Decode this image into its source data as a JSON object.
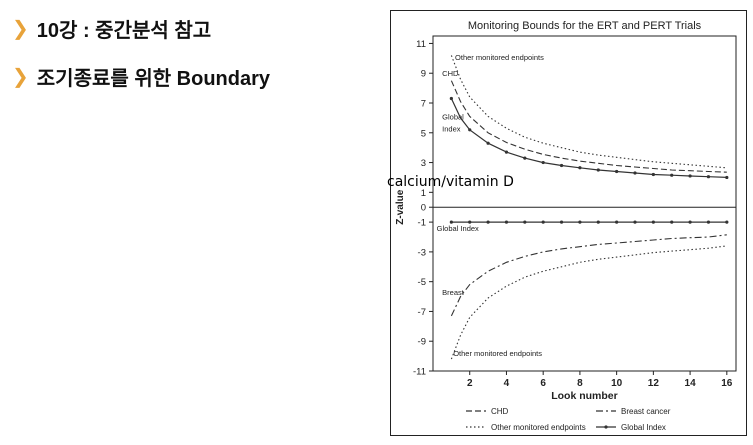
{
  "bullets": [
    {
      "icon": "chevron-right-icon",
      "text": "10강 : 중간분석 참고"
    },
    {
      "icon": "chevron-right-icon",
      "text": "조기종료를 위한 Boundary"
    }
  ],
  "overlay_label": "calcium/vitamin D",
  "colors": {
    "chevron": "#e8a33a",
    "lines": "#333333"
  },
  "chart_data": {
    "type": "line",
    "title": "Monitoring Bounds for the ERT and PERT Trials",
    "xlabel": "Look number",
    "ylabel": "Z-value",
    "xlim": [
      0,
      16.5
    ],
    "ylim": [
      -11,
      11.5
    ],
    "xticks": [
      2,
      4,
      6,
      8,
      10,
      12,
      14,
      16
    ],
    "yticks": [
      11,
      9,
      7,
      5,
      3,
      1,
      0,
      -1,
      -3,
      -5,
      -7,
      -9,
      -11
    ],
    "x": [
      1,
      1.5,
      2,
      3,
      4,
      5,
      6,
      7,
      8,
      9,
      10,
      11,
      12,
      13,
      14,
      15,
      16
    ],
    "series": [
      {
        "name": "Other monitored endpoints",
        "style": "dotted",
        "values": [
          10.2,
          8.6,
          7.4,
          6.1,
          5.3,
          4.7,
          4.3,
          4.0,
          3.7,
          3.5,
          3.35,
          3.2,
          3.05,
          2.95,
          2.85,
          2.75,
          2.65
        ]
      },
      {
        "name": "CHD",
        "style": "dash",
        "values": [
          8.5,
          7.1,
          6.1,
          5.0,
          4.35,
          3.9,
          3.55,
          3.3,
          3.1,
          2.95,
          2.8,
          2.7,
          2.6,
          2.5,
          2.45,
          2.4,
          2.35
        ]
      },
      {
        "name": "Global Index",
        "style": "solid-marker",
        "values": [
          7.3,
          6.0,
          5.2,
          4.3,
          3.7,
          3.3,
          3.0,
          2.8,
          2.65,
          2.5,
          2.4,
          2.3,
          2.2,
          2.15,
          2.1,
          2.05,
          2.0
        ]
      },
      {
        "name": "Global Index",
        "style": "solid-marker",
        "values": [
          -1,
          -1,
          -1,
          -1,
          -1,
          -1,
          -1,
          -1,
          -1,
          -1,
          -1,
          -1,
          -1,
          -1,
          -1,
          -1,
          -1
        ]
      },
      {
        "name": "Breast cancer",
        "style": "dashdot",
        "values": [
          -7.3,
          -6.0,
          -5.2,
          -4.3,
          -3.7,
          -3.3,
          -3.0,
          -2.8,
          -2.65,
          -2.5,
          -2.4,
          -2.3,
          -2.2,
          -2.1,
          -2.05,
          -2.0,
          -1.85
        ]
      },
      {
        "name": "Other monitored endpoints",
        "style": "dotted",
        "values": [
          -10.2,
          -8.6,
          -7.4,
          -6.1,
          -5.3,
          -4.7,
          -4.3,
          -4.0,
          -3.7,
          -3.5,
          -3.35,
          -3.2,
          -3.05,
          -2.95,
          -2.85,
          -2.75,
          -2.6
        ]
      }
    ],
    "annotations": [
      {
        "text": "Other monitored endpoints",
        "x": 1.2,
        "y": 9.9
      },
      {
        "text": "CHD",
        "x": 0.5,
        "y": 8.8
      },
      {
        "text": "Global",
        "x": 0.5,
        "y": 5.9
      },
      {
        "text": "Index",
        "x": 0.5,
        "y": 5.1
      },
      {
        "text": "Global Index",
        "x": 0.2,
        "y": -1.6
      },
      {
        "text": "Breast",
        "x": 0.5,
        "y": -5.9
      },
      {
        "text": "Other monitored endpoints",
        "x": 1.1,
        "y": -10.0
      }
    ],
    "legend": [
      {
        "label": "CHD",
        "style": "dash"
      },
      {
        "label": "Breast cancer",
        "style": "dashdot"
      },
      {
        "label": "Other monitored endpoints",
        "style": "dotted"
      },
      {
        "label": "Global Index",
        "style": "solid-marker"
      }
    ],
    "legend_position": "bottom",
    "grid": false
  }
}
